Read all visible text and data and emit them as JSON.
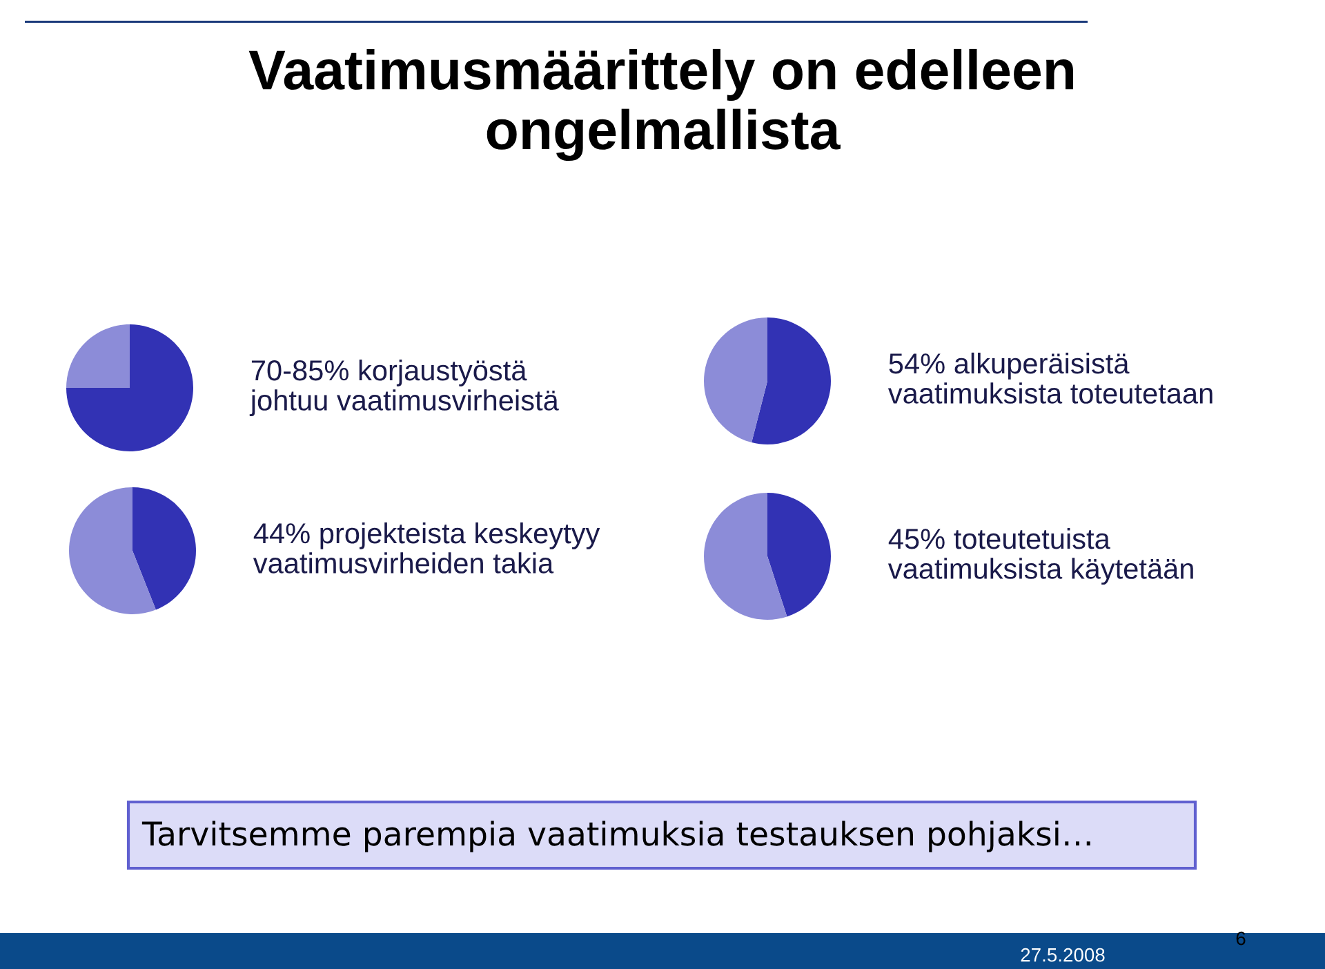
{
  "chart_data": [
    {
      "type": "pie",
      "title": "70-85% korjaustyöstä\njohtuu vaatimusvirheistä",
      "categories": [
        null,
        null
      ],
      "values": [
        75,
        25
      ],
      "colors": [
        "#3232b4",
        "#8c8cd8"
      ]
    },
    {
      "type": "pie",
      "title": "54% alkuperäisistä\nvaatimuksista toteutetaan",
      "categories": [
        null,
        null
      ],
      "values": [
        54,
        46
      ],
      "colors": [
        "#3232b4",
        "#8c8cd8"
      ]
    },
    {
      "type": "pie",
      "title": "44% projekteista keskeytyy\nvaatimusvirheiden takia",
      "categories": [
        null,
        null
      ],
      "values": [
        44,
        56
      ],
      "colors": [
        "#3232b4",
        "#8c8cd8"
      ]
    },
    {
      "type": "pie",
      "title": "45% toteutetuista\nvaatimuksista käytetään",
      "categories": [
        null,
        null
      ],
      "values": [
        45,
        55
      ],
      "colors": [
        "#3232b4",
        "#8c8cd8"
      ]
    },
    {
      "type": "other",
      "title": "Vaatimusmäärittely on edelleen\nongelmallista",
      "annotations": [
        "Tarvitsemme parempia vaatimuksia testauksen pohjaksi…",
        "27.5.2008",
        "6"
      ]
    }
  ]
}
